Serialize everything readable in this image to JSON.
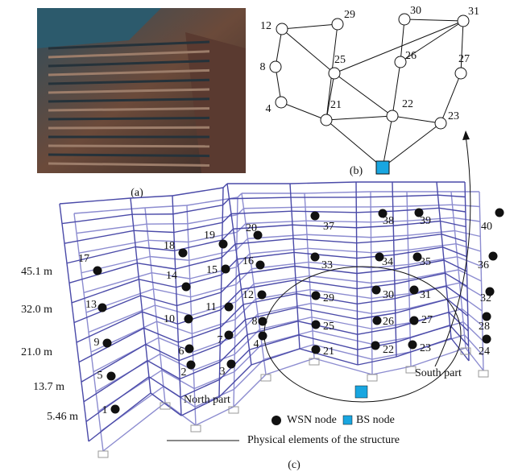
{
  "panels": {
    "a": "(a)",
    "b": "(b)",
    "c": "(c)"
  },
  "network": {
    "nodes": [
      "12",
      "29",
      "30",
      "31",
      "8",
      "25",
      "26",
      "27",
      "4",
      "21",
      "22",
      "23"
    ]
  },
  "structure": {
    "node_labels": [
      "1",
      "2",
      "3",
      "4",
      "5",
      "6",
      "7",
      "8",
      "9",
      "10",
      "11",
      "12",
      "13",
      "14",
      "15",
      "16",
      "17",
      "18",
      "19",
      "20",
      "21",
      "22",
      "23",
      "24",
      "25",
      "26",
      "27",
      "28",
      "29",
      "30",
      "31",
      "32",
      "33",
      "34",
      "35",
      "36",
      "37",
      "38",
      "39",
      "40"
    ],
    "heights": [
      "45.1 m",
      "32.0 m",
      "21.0 m",
      "13.7 m",
      "5.46 m"
    ],
    "regions": [
      "North part",
      "South part"
    ],
    "legend": {
      "wsn": "WSN node",
      "bs": "BS node",
      "elements": "Physical elements of the structure"
    }
  }
}
